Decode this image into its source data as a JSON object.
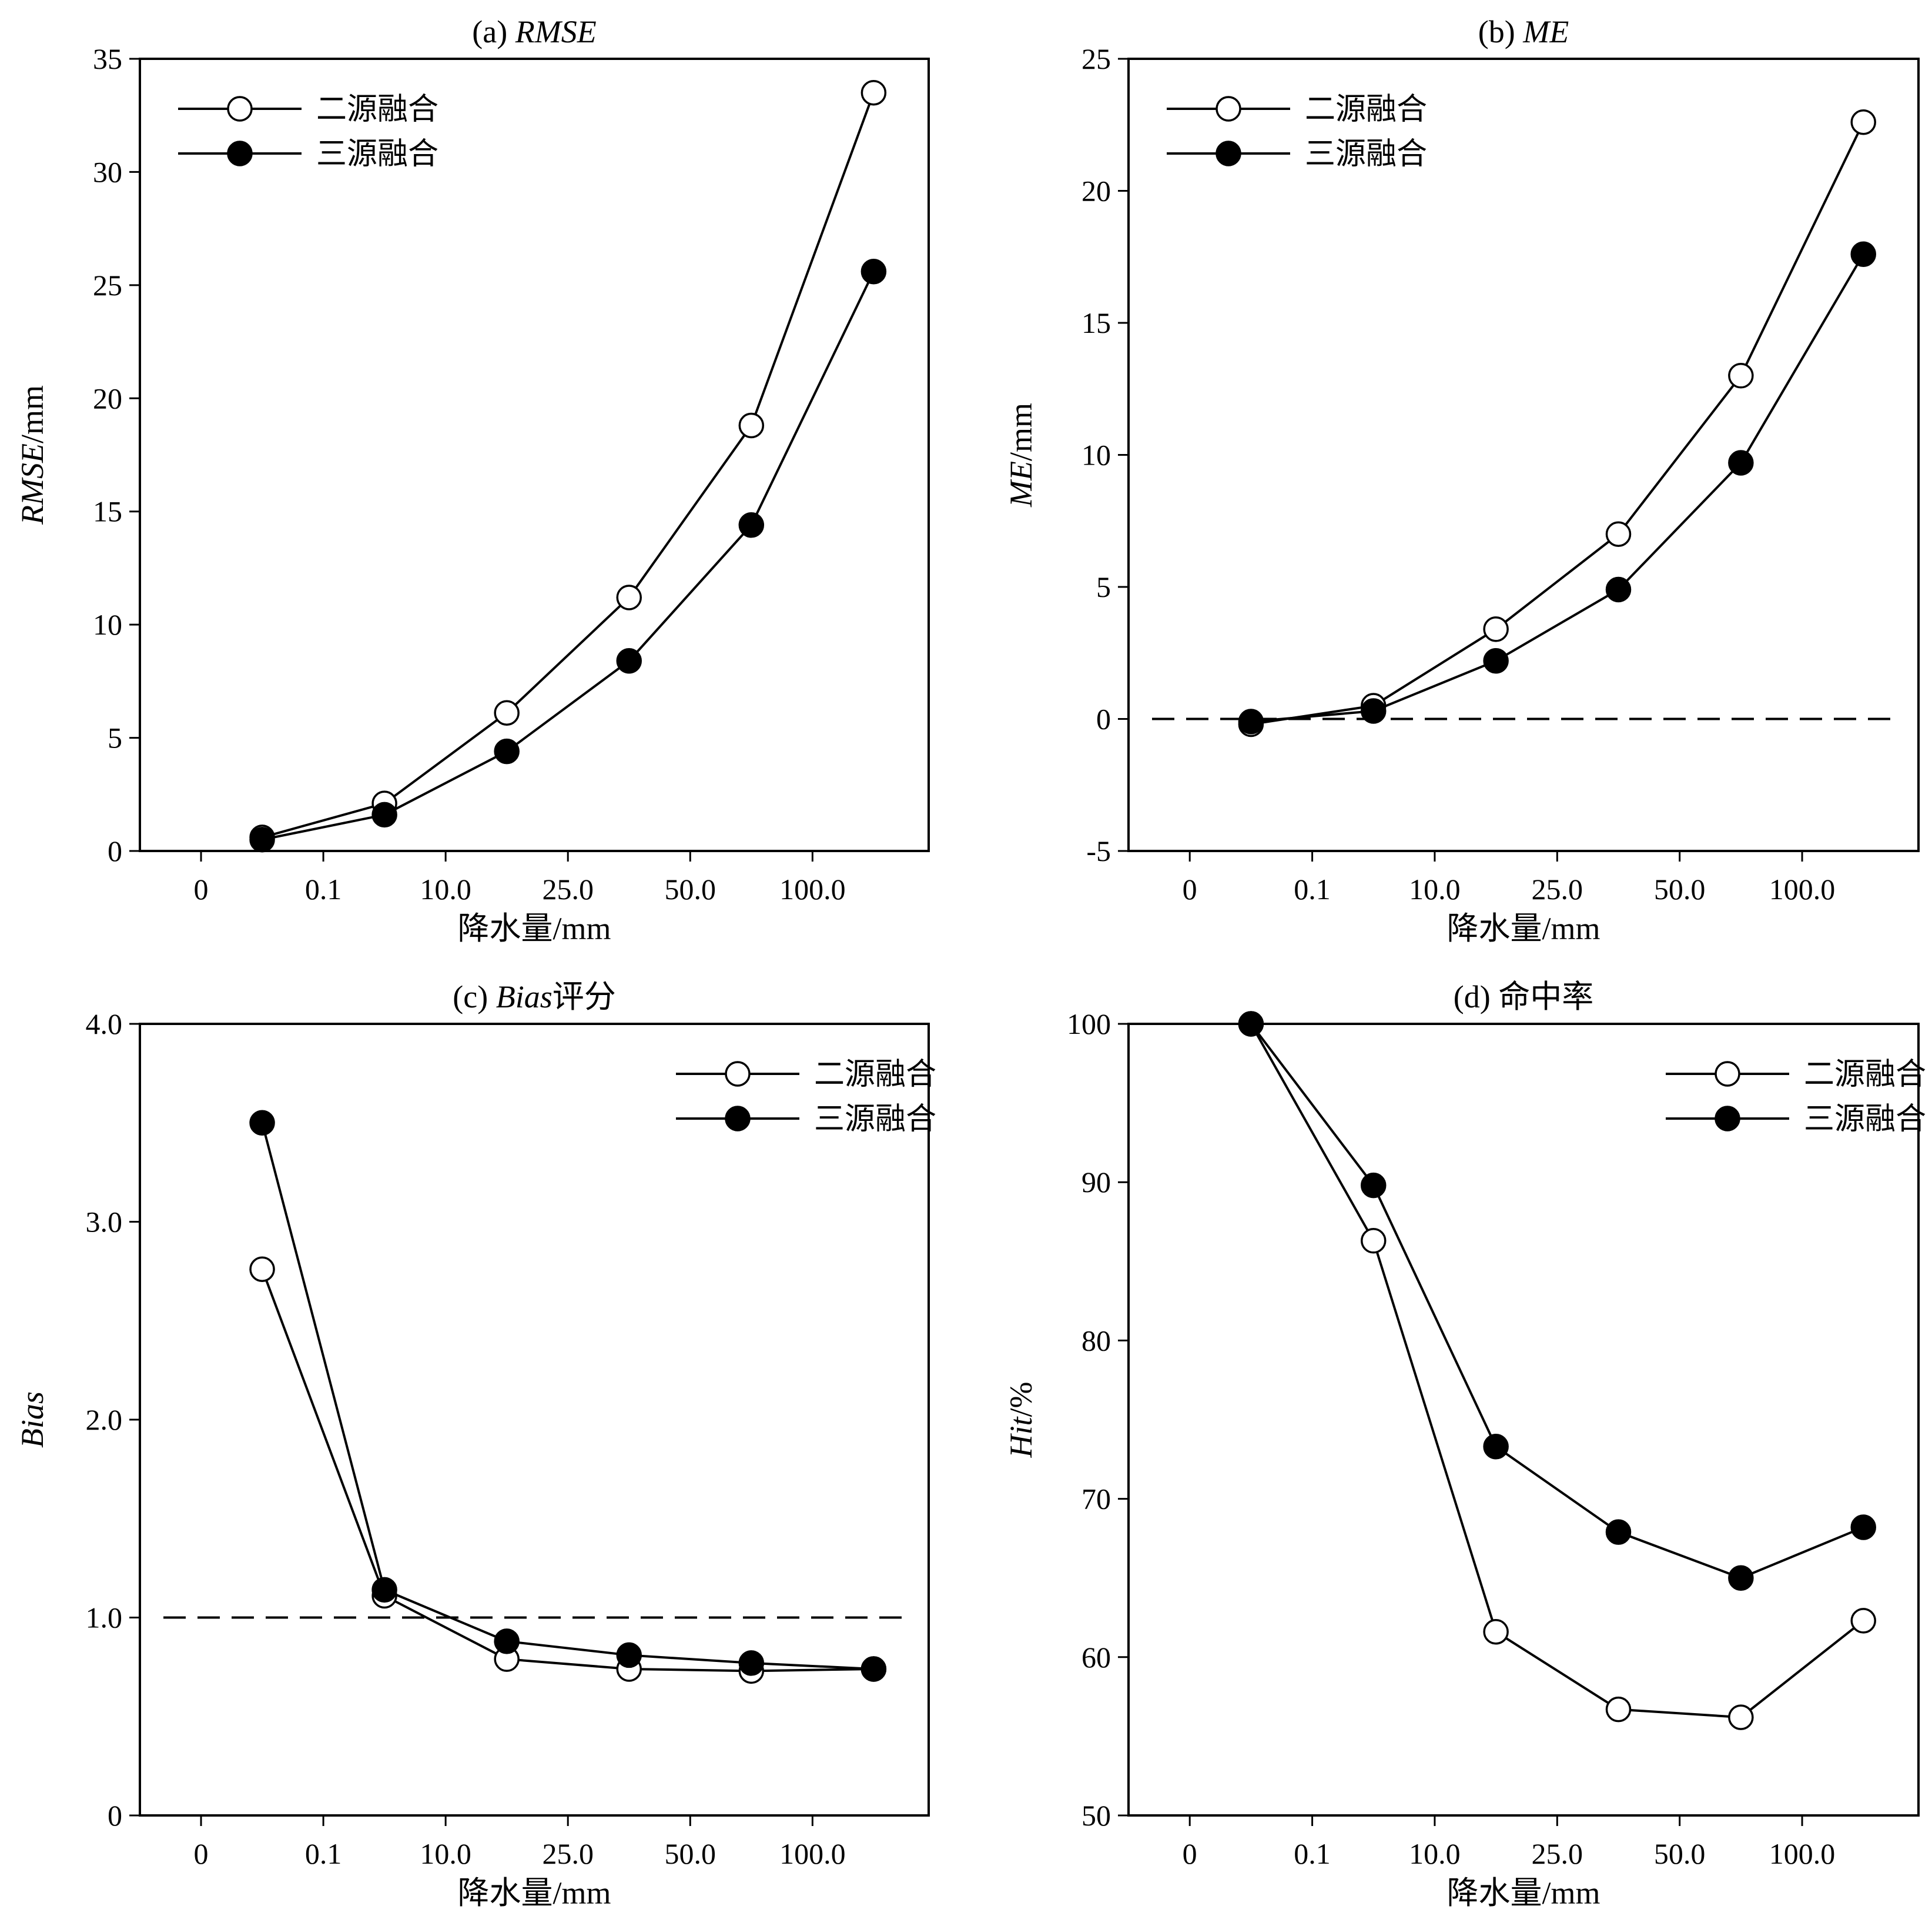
{
  "figure": {
    "x_categories": [
      "0",
      "0.1",
      "10.0",
      "25.0",
      "50.0",
      "100.0"
    ],
    "legend": [
      "二源融合",
      "三源融合"
    ]
  },
  "chart_data": [
    {
      "id": "a",
      "type": "line",
      "title_prefix": "(a) ",
      "title_metric": "RMSE",
      "title_suffix": "",
      "xlabel": "降水量/mm",
      "ylabel_metric": "RMSE",
      "ylabel_suffix": "/mm",
      "ylim": [
        0,
        35
      ],
      "yticks": [
        "0",
        "5",
        "10",
        "15",
        "20",
        "25",
        "30",
        "35"
      ],
      "x": [
        0.5,
        1.5,
        2.5,
        3.5,
        4.5,
        5.5
      ],
      "reference_line": null,
      "legend_position": "top-left",
      "series": [
        {
          "name": "二源融合",
          "marker": "open-circle",
          "values": [
            0.6,
            2.1,
            6.1,
            11.2,
            18.8,
            33.5
          ]
        },
        {
          "name": "三源融合",
          "marker": "filled-circle",
          "values": [
            0.5,
            1.6,
            4.4,
            8.4,
            14.4,
            25.6
          ]
        }
      ]
    },
    {
      "id": "b",
      "type": "line",
      "title_prefix": "(b) ",
      "title_metric": "ME",
      "title_suffix": "",
      "xlabel": "降水量/mm",
      "ylabel_metric": "ME",
      "ylabel_suffix": "/mm",
      "ylim": [
        -5,
        25
      ],
      "yticks": [
        "-5",
        "0",
        "5",
        "10",
        "15",
        "20",
        "25"
      ],
      "x": [
        0.5,
        1.5,
        2.5,
        3.5,
        4.5,
        5.5
      ],
      "reference_line": 0,
      "legend_position": "top-left",
      "series": [
        {
          "name": "二源融合",
          "marker": "open-circle",
          "values": [
            -0.2,
            0.5,
            3.4,
            7.0,
            13.0,
            22.6
          ]
        },
        {
          "name": "三源融合",
          "marker": "filled-circle",
          "values": [
            -0.1,
            0.3,
            2.2,
            4.9,
            9.7,
            17.6
          ]
        }
      ]
    },
    {
      "id": "c",
      "type": "line",
      "title_prefix": "(c) ",
      "title_metric": "Bias",
      "title_suffix": "评分",
      "xlabel": "降水量/mm",
      "ylabel_metric": "Bias",
      "ylabel_suffix": "",
      "ylim": [
        0,
        4
      ],
      "yticks": [
        "0",
        "1.0",
        "2.0",
        "3.0",
        "4.0"
      ],
      "x": [
        0.5,
        1.5,
        2.5,
        3.5,
        4.5,
        5.5
      ],
      "reference_line": 1.0,
      "legend_position": "top-right",
      "series": [
        {
          "name": "二源融合",
          "marker": "open-circle",
          "values": [
            2.76,
            1.11,
            0.79,
            0.74,
            0.73,
            0.74
          ]
        },
        {
          "name": "三源融合",
          "marker": "filled-circle",
          "values": [
            3.5,
            1.14,
            0.88,
            0.81,
            0.77,
            0.74
          ]
        }
      ]
    },
    {
      "id": "d",
      "type": "line",
      "title_prefix": "(d) ",
      "title_metric": "",
      "title_suffix": "命中率",
      "xlabel": "降水量/mm",
      "ylabel_metric": "Hit",
      "ylabel_suffix": "/%",
      "ylim": [
        50,
        100
      ],
      "yticks": [
        "50",
        "60",
        "70",
        "80",
        "90",
        "100"
      ],
      "x": [
        0.5,
        1.5,
        2.5,
        3.5,
        4.5,
        5.5
      ],
      "reference_line": null,
      "legend_position": "top-right",
      "series": [
        {
          "name": "二源融合",
          "marker": "open-circle",
          "values": [
            100,
            86.3,
            61.6,
            56.7,
            56.2,
            62.3
          ]
        },
        {
          "name": "三源融合",
          "marker": "filled-circle",
          "values": [
            100,
            89.8,
            73.3,
            67.9,
            65.0,
            68.2
          ]
        }
      ]
    }
  ]
}
